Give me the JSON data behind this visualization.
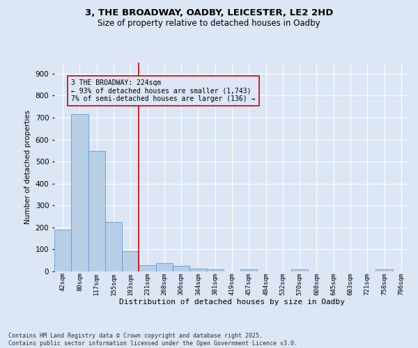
{
  "title_line1": "3, THE BROADWAY, OADBY, LEICESTER, LE2 2HD",
  "title_line2": "Size of property relative to detached houses in Oadby",
  "xlabel": "Distribution of detached houses by size in Oadby",
  "ylabel": "Number of detached properties",
  "categories": [
    "42sqm",
    "80sqm",
    "117sqm",
    "155sqm",
    "193sqm",
    "231sqm",
    "268sqm",
    "306sqm",
    "344sqm",
    "381sqm",
    "419sqm",
    "457sqm",
    "494sqm",
    "532sqm",
    "570sqm",
    "608sqm",
    "645sqm",
    "683sqm",
    "721sqm",
    "758sqm",
    "796sqm"
  ],
  "values": [
    190,
    715,
    547,
    225,
    91,
    30,
    39,
    25,
    12,
    10,
    1,
    10,
    0,
    0,
    8,
    0,
    0,
    0,
    0,
    9,
    0
  ],
  "bar_color": "#b8cfe8",
  "bar_edge_color": "#5b9bd5",
  "bg_color": "#dce6f5",
  "grid_color": "#ffffff",
  "vline_index": 5,
  "vline_color": "#cc0000",
  "annotation_text": "3 THE BROADWAY: 224sqm\n← 93% of detached houses are smaller (1,743)\n7% of semi-detached houses are larger (136) →",
  "annotation_box_color": "#cc0000",
  "ylim": [
    0,
    950
  ],
  "yticks": [
    0,
    100,
    200,
    300,
    400,
    500,
    600,
    700,
    800,
    900
  ],
  "footer": "Contains HM Land Registry data © Crown copyright and database right 2025.\nContains public sector information licensed under the Open Government Licence v3.0.",
  "figsize": [
    6.0,
    5.0
  ],
  "dpi": 100
}
